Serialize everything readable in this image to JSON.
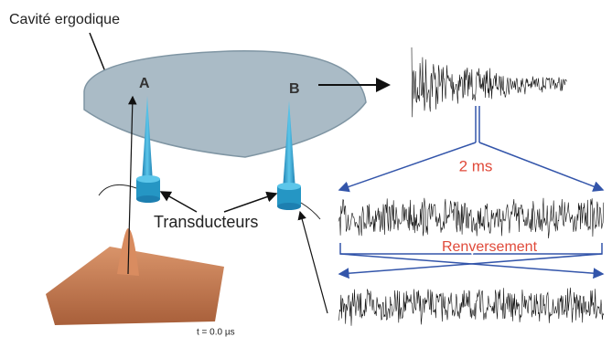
{
  "title": "Cavité ergodique",
  "points": {
    "a": "A",
    "b": "B"
  },
  "transducers": "Transducteurs",
  "duration": "2 ms",
  "reversal": "Renversement",
  "time_label": "t = 0.0 µs"
}
